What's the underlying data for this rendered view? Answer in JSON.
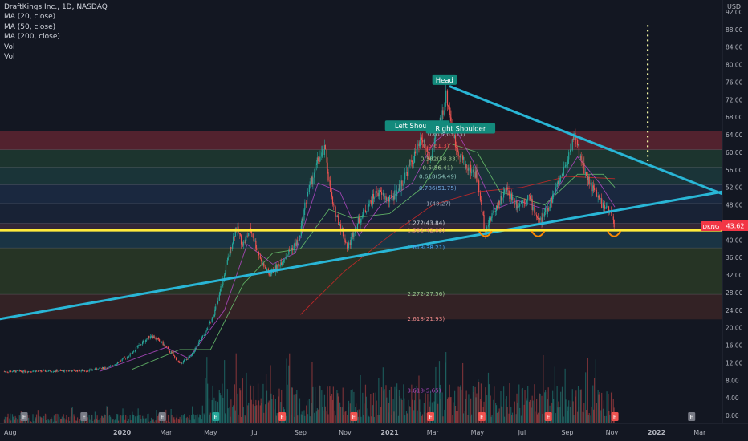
{
  "chart_title": "DraftKings Inc., 1D, NASDAQ",
  "indicators": [
    "MA (20, close)",
    "MA (50, close)",
    "MA (200, close)",
    "Vol",
    "Vol"
  ],
  "currency": "USD",
  "ticker": "DKNG",
  "last_price": "43.62",
  "colors": {
    "background": "#131722",
    "candle_up": "#26a69a",
    "candle_down": "#ef5350",
    "trendline": "#29b6d6",
    "neckline": "#ffeb3b",
    "axis_text": "#b2b5be",
    "price_tag": "#f23645"
  },
  "chart_data": {
    "type": "candlestick",
    "title": "DraftKings Inc., 1D, NASDAQ",
    "x_range": [
      "2019-07-18",
      "2022-04-01"
    ],
    "y_range": [
      0,
      92
    ],
    "x_ticks": [
      {
        "date": "2019-08-01",
        "label": "Aug"
      },
      {
        "date": "2020-01-01",
        "label": "2020"
      },
      {
        "date": "2020-03-01",
        "label": "Mar"
      },
      {
        "date": "2020-05-01",
        "label": "May"
      },
      {
        "date": "2020-07-01",
        "label": "Jul"
      },
      {
        "date": "2020-09-01",
        "label": "Sep"
      },
      {
        "date": "2020-11-01",
        "label": "Nov"
      },
      {
        "date": "2021-01-01",
        "label": "2021"
      },
      {
        "date": "2021-03-01",
        "label": "Mar"
      },
      {
        "date": "2021-05-01",
        "label": "May"
      },
      {
        "date": "2021-07-01",
        "label": "Jul"
      },
      {
        "date": "2021-09-01",
        "label": "Sep"
      },
      {
        "date": "2021-11-01",
        "label": "Nov"
      },
      {
        "date": "2022-01-01",
        "label": "2022"
      },
      {
        "date": "2022-03-01",
        "label": "Mar"
      }
    ],
    "y_ticks": [
      "0.00",
      "4.00",
      "8.00",
      "12.00",
      "16.00",
      "20.00",
      "24.00",
      "28.00",
      "32.00",
      "36.00",
      "40.00",
      "44.00",
      "48.00",
      "52.00",
      "56.00",
      "60.00",
      "64.00",
      "68.00",
      "72.00",
      "76.00",
      "80.00",
      "84.00",
      "88.00",
      "92.00"
    ],
    "price_path": [
      [
        "2019-07-24",
        10.0
      ],
      [
        "2019-09-15",
        10.1
      ],
      [
        "2019-11-15",
        10.2
      ],
      [
        "2019-12-15",
        11.0
      ],
      [
        "2020-01-10",
        13.5
      ],
      [
        "2020-01-25",
        16.0
      ],
      [
        "2020-02-10",
        18.3
      ],
      [
        "2020-02-25",
        16.5
      ],
      [
        "2020-03-10",
        14.0
      ],
      [
        "2020-03-20",
        11.8
      ],
      [
        "2020-04-05",
        13.5
      ],
      [
        "2020-04-15",
        16.5
      ],
      [
        "2020-04-25",
        19.0
      ],
      [
        "2020-05-10",
        25.0
      ],
      [
        "2020-05-20",
        32.0
      ],
      [
        "2020-06-05",
        43.0
      ],
      [
        "2020-06-15",
        39.0
      ],
      [
        "2020-06-25",
        42.5
      ],
      [
        "2020-07-10",
        35.0
      ],
      [
        "2020-07-20",
        32.0
      ],
      [
        "2020-08-01",
        34.0
      ],
      [
        "2020-08-15",
        37.0
      ],
      [
        "2020-08-30",
        40.0
      ],
      [
        "2020-09-10",
        50.0
      ],
      [
        "2020-09-25",
        58.0
      ],
      [
        "2020-10-05",
        60.5
      ],
      [
        "2020-10-15",
        48.0
      ],
      [
        "2020-10-25",
        44.0
      ],
      [
        "2020-11-05",
        38.0
      ],
      [
        "2020-11-15",
        43.0
      ],
      [
        "2020-11-30",
        47.0
      ],
      [
        "2020-12-15",
        51.0
      ],
      [
        "2021-01-01",
        49.0
      ],
      [
        "2021-01-15",
        52.0
      ],
      [
        "2021-02-01",
        58.0
      ],
      [
        "2021-02-15",
        63.0
      ],
      [
        "2021-02-25",
        58.0
      ],
      [
        "2021-03-10",
        66.0
      ],
      [
        "2021-03-20",
        73.0
      ],
      [
        "2021-04-01",
        62.0
      ],
      [
        "2021-04-15",
        57.0
      ],
      [
        "2021-04-30",
        55.0
      ],
      [
        "2021-05-12",
        42.0
      ],
      [
        "2021-05-25",
        47.0
      ],
      [
        "2021-06-10",
        51.5
      ],
      [
        "2021-06-25",
        48.0
      ],
      [
        "2021-07-10",
        50.0
      ],
      [
        "2021-07-25",
        44.0
      ],
      [
        "2021-08-05",
        47.0
      ],
      [
        "2021-08-20",
        53.0
      ],
      [
        "2021-09-01",
        58.0
      ],
      [
        "2021-09-10",
        64.0
      ],
      [
        "2021-09-25",
        56.0
      ],
      [
        "2021-10-05",
        52.0
      ],
      [
        "2021-10-20",
        48.0
      ],
      [
        "2021-11-01",
        45.5
      ],
      [
        "2021-11-05",
        43.6
      ]
    ],
    "ma20_path": [
      [
        "2019-12-01",
        10.0
      ],
      [
        "2020-03-01",
        15.5
      ],
      [
        "2020-04-01",
        13.0
      ],
      [
        "2020-05-20",
        24.0
      ],
      [
        "2020-06-20",
        39.0
      ],
      [
        "2020-07-25",
        34.5
      ],
      [
        "2020-08-25",
        37.0
      ],
      [
        "2020-09-25",
        53.0
      ],
      [
        "2020-10-25",
        51.0
      ],
      [
        "2020-11-20",
        41.0
      ],
      [
        "2020-12-20",
        48.0
      ],
      [
        "2021-02-01",
        53.0
      ],
      [
        "2021-03-01",
        62.0
      ],
      [
        "2021-03-30",
        66.0
      ],
      [
        "2021-04-25",
        58.0
      ],
      [
        "2021-05-25",
        47.0
      ],
      [
        "2021-06-25",
        49.0
      ],
      [
        "2021-08-01",
        47.0
      ],
      [
        "2021-09-15",
        59.0
      ],
      [
        "2021-10-15",
        53.0
      ],
      [
        "2021-11-05",
        47.5
      ]
    ],
    "ma50_path": [
      [
        "2020-01-15",
        10.5
      ],
      [
        "2020-03-20",
        15.0
      ],
      [
        "2020-05-01",
        15.0
      ],
      [
        "2020-06-15",
        30.0
      ],
      [
        "2020-07-25",
        37.0
      ],
      [
        "2020-09-01",
        38.0
      ],
      [
        "2020-10-10",
        47.0
      ],
      [
        "2020-11-10",
        45.0
      ],
      [
        "2021-01-01",
        46.0
      ],
      [
        "2021-02-15",
        52.0
      ],
      [
        "2021-03-25",
        62.0
      ],
      [
        "2021-05-01",
        60.0
      ],
      [
        "2021-06-01",
        51.0
      ],
      [
        "2021-08-01",
        48.0
      ],
      [
        "2021-09-15",
        55.0
      ],
      [
        "2021-10-20",
        55.0
      ],
      [
        "2021-11-05",
        52.0
      ]
    ],
    "ma200_path": [
      [
        "2020-09-01",
        23.0
      ],
      [
        "2020-11-01",
        33.0
      ],
      [
        "2021-01-01",
        41.0
      ],
      [
        "2021-03-01",
        48.0
      ],
      [
        "2021-05-01",
        51.0
      ],
      [
        "2021-07-01",
        52.0
      ],
      [
        "2021-09-01",
        54.5
      ],
      [
        "2021-11-05",
        54.0
      ]
    ],
    "trend_upper": [
      [
        "2021-03-25",
        75.0
      ],
      [
        "2022-04-01",
        50.5
      ]
    ],
    "trend_lower": [
      [
        "2019-07-18",
        22.0
      ],
      [
        "2022-04-01",
        51.0
      ]
    ],
    "neckline": {
      "price": 42.2,
      "from": "2019-07-18",
      "to": "2022-04-01"
    },
    "target_dots": {
      "date": "2021-12-20",
      "from": 58.0,
      "to": 89.0
    },
    "zones": [
      {
        "from": 60.6,
        "to": 64.8,
        "color": "#5e2430"
      },
      {
        "from": 56.6,
        "to": 60.6,
        "color": "#1f3a30"
      },
      {
        "from": 52.6,
        "to": 56.6,
        "color": "#1c3a3c"
      },
      {
        "from": 48.3,
        "to": 52.6,
        "color": "#1c2c44"
      },
      {
        "from": 43.8,
        "to": 48.3,
        "color": "#1a2538"
      },
      {
        "from": 42.0,
        "to": 43.8,
        "color": "#3a2a3a"
      },
      {
        "from": 38.2,
        "to": 42.0,
        "color": "#1c3a4a"
      },
      {
        "from": 27.6,
        "to": 38.2,
        "color": "#2a3a26"
      },
      {
        "from": 21.9,
        "to": 27.6,
        "color": "#3a2426"
      }
    ],
    "fib_levels": [
      {
        "text": "0.618(63.13)",
        "price": 64.3,
        "date": "2021-02-22",
        "color": "#b2b5be"
      },
      {
        "text": "0.5(61.3)",
        "price": 61.6,
        "date": "2021-02-15",
        "color": "#ef5350"
      },
      {
        "text": "0.382(58.33)",
        "price": 58.6,
        "date": "2021-02-12",
        "color": "#9dc78f"
      },
      {
        "text": "0.5(56.41)",
        "price": 56.6,
        "date": "2021-02-15",
        "color": "#9dc78f"
      },
      {
        "text": "0.618(54.49)",
        "price": 54.6,
        "date": "2021-02-10",
        "color": "#8fc7c0"
      },
      {
        "text": "0.786(51.75)",
        "price": 51.9,
        "date": "2021-02-10",
        "color": "#6fa8dc"
      },
      {
        "text": "1(48.27)",
        "price": 48.4,
        "date": "2021-02-20",
        "color": "#9aa3b5"
      },
      {
        "text": "1.272(43.84)",
        "price": 44.0,
        "date": "2021-01-25",
        "color": "#d1d4dc"
      },
      {
        "text": "1.382(42.05)",
        "price": 42.3,
        "date": "2021-01-25",
        "color": "#ef8a8a"
      },
      {
        "text": "1.618(38.21)",
        "price": 38.4,
        "date": "2021-01-25",
        "color": "#42a5f5"
      },
      {
        "text": "2.272(27.56)",
        "price": 27.8,
        "date": "2021-01-25",
        "color": "#9dc78f"
      },
      {
        "text": "2.618(21.93)",
        "price": 22.1,
        "date": "2021-01-25",
        "color": "#ef8a8a"
      },
      {
        "text": "3.618(5.65)",
        "price": 5.8,
        "date": "2021-01-25",
        "color": "#ab47bc"
      }
    ],
    "annotations": [
      {
        "text": "Head",
        "date": "2021-03-17",
        "price": 76.3
      },
      {
        "text": "Left Shoulder",
        "date": "2021-02-08",
        "price": 65.8
      },
      {
        "text": "Right Shoulder",
        "date": "2021-04-08",
        "price": 65.2
      }
    ],
    "smile_marks": [
      "2021-05-12",
      "2021-07-23",
      "2021-11-04"
    ],
    "earnings_marks": [
      {
        "date": "2019-08-20",
        "color": "#787b86"
      },
      {
        "date": "2019-11-10",
        "color": "#787b86"
      },
      {
        "date": "2020-02-25",
        "color": "#787b86"
      },
      {
        "date": "2020-05-08",
        "color": "#26a69a"
      },
      {
        "date": "2020-08-07",
        "color": "#ef5350"
      },
      {
        "date": "2020-11-13",
        "color": "#ef5350"
      },
      {
        "date": "2021-02-26",
        "color": "#ef5350"
      },
      {
        "date": "2021-05-07",
        "color": "#ef5350"
      },
      {
        "date": "2021-08-06",
        "color": "#ef5350"
      },
      {
        "date": "2021-11-05",
        "color": "#ef5350"
      },
      {
        "date": "2022-02-18",
        "color": "#787b86"
      }
    ]
  }
}
